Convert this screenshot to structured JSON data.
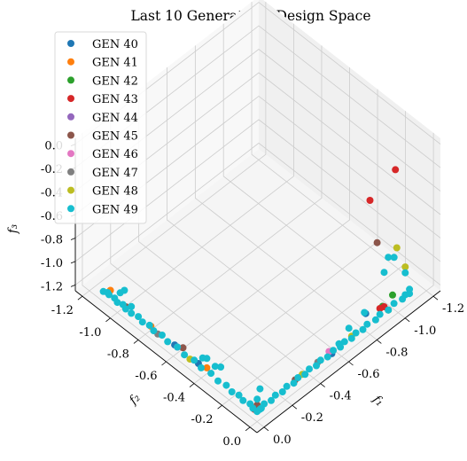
{
  "chart_data": {
    "type": "scatter",
    "projection": "3d",
    "title": "Last 10 Generations Design Space",
    "xlabel": "f₁",
    "ylabel": "f₂",
    "zlabel": "f₃",
    "xlim": [
      -1.25,
      0.05
    ],
    "ylim": [
      -1.25,
      0.05
    ],
    "zlim": [
      -1.25,
      0.05
    ],
    "x_ticks": [
      "-1.2",
      "-1.0",
      "-0.8",
      "-0.6",
      "-0.4",
      "-0.2",
      "0.0"
    ],
    "y_ticks": [
      "-1.2",
      "-1.0",
      "-0.8",
      "-0.6",
      "-0.4",
      "-0.2",
      "0.0"
    ],
    "z_ticks": [
      "-1.2",
      "-1.0",
      "-0.8",
      "-0.6",
      "-0.4",
      "-0.2",
      "0.0"
    ],
    "grid": true,
    "legend_position": "top-left",
    "series": [
      {
        "name": "GEN 40",
        "color": "#1f77b4",
        "points": [
          [
            -0.55,
            -0.02,
            -1.2
          ],
          [
            -0.03,
            -0.45,
            -1.2
          ],
          [
            -0.03,
            -0.62,
            -1.2
          ],
          [
            -0.8,
            -0.03,
            -1.1
          ]
        ]
      },
      {
        "name": "GEN 41",
        "color": "#ff7f0e",
        "points": [
          [
            -0.02,
            -0.78,
            -1.18
          ],
          [
            -0.04,
            -0.4,
            -1.2
          ],
          [
            -0.05,
            -1.1,
            -1.2
          ]
        ]
      },
      {
        "name": "GEN 42",
        "color": "#2ca02c",
        "points": [
          [
            -0.98,
            -0.02,
            -1.1
          ],
          [
            -0.95,
            -0.02,
            -1.2
          ],
          [
            -0.92,
            -0.03,
            -1.15
          ]
        ]
      },
      {
        "name": "GEN 43",
        "color": "#d62728",
        "points": [
          [
            -1.0,
            -0.02,
            -0.05
          ],
          [
            -0.95,
            -0.05,
            -1.2
          ],
          [
            -0.02,
            -0.04,
            -1.2
          ],
          [
            -0.85,
            -0.05,
            -0.2
          ],
          [
            -0.9,
            -0.03,
            -1.15
          ]
        ]
      },
      {
        "name": "GEN 44",
        "color": "#9467bd",
        "points": []
      },
      {
        "name": "GEN 45",
        "color": "#8c564b",
        "points": [
          [
            -0.05,
            -0.05,
            -1.2
          ],
          [
            -0.03,
            -0.97,
            -1.2
          ],
          [
            -0.95,
            -0.1,
            -0.7
          ],
          [
            -0.3,
            -0.03,
            -1.2
          ],
          [
            -0.02,
            -0.55,
            -1.15
          ]
        ]
      },
      {
        "name": "GEN 46",
        "color": "#e377c2",
        "points": [
          [
            -0.55,
            -0.04,
            -1.2
          ],
          [
            -0.03,
            -0.6,
            -1.2
          ]
        ]
      },
      {
        "name": "GEN 47",
        "color": "#7f7f7f",
        "points": [
          [
            -0.02,
            -0.73,
            -1.2
          ],
          [
            -0.45,
            -0.02,
            -1.18
          ]
        ]
      },
      {
        "name": "GEN 48",
        "color": "#bcbd22",
        "points": [
          [
            -1.05,
            -0.06,
            -0.8
          ],
          [
            -0.02,
            -0.5,
            -1.2
          ],
          [
            -0.35,
            -0.03,
            -1.2
          ],
          [
            -0.7,
            -0.03,
            -1.2
          ],
          [
            -1.1,
            -0.05,
            -1.0
          ]
        ]
      },
      {
        "name": "GEN 49",
        "color": "#17becf",
        "points": [
          [
            -0.02,
            -0.02,
            -1.2
          ],
          [
            -0.04,
            -0.02,
            -1.2
          ],
          [
            -0.02,
            -0.05,
            -1.2
          ],
          [
            -0.03,
            -0.08,
            -1.2
          ],
          [
            -0.02,
            -0.12,
            -1.2
          ],
          [
            -0.03,
            -0.16,
            -1.2
          ],
          [
            -0.02,
            -0.2,
            -1.2
          ],
          [
            -0.03,
            -0.25,
            -1.2
          ],
          [
            -0.02,
            -0.3,
            -1.2
          ],
          [
            -0.03,
            -0.36,
            -1.2
          ],
          [
            -0.02,
            -0.42,
            -1.2
          ],
          [
            -0.03,
            -0.48,
            -1.2
          ],
          [
            -0.02,
            -0.54,
            -1.2
          ],
          [
            -0.03,
            -0.6,
            -1.2
          ],
          [
            -0.02,
            -0.66,
            -1.2
          ],
          [
            -0.03,
            -0.71,
            -1.2
          ],
          [
            -0.02,
            -0.76,
            -1.2
          ],
          [
            -0.03,
            -0.8,
            -1.2
          ],
          [
            -0.02,
            -0.84,
            -1.2
          ],
          [
            -0.03,
            -0.88,
            -1.2
          ],
          [
            -0.02,
            -0.92,
            -1.2
          ],
          [
            -0.04,
            -0.94,
            -1.18
          ],
          [
            -0.02,
            -0.96,
            -1.2
          ],
          [
            -0.03,
            -0.99,
            -1.2
          ],
          [
            -0.02,
            -1.02,
            -1.2
          ],
          [
            -0.03,
            -1.05,
            -1.2
          ],
          [
            -0.02,
            -1.08,
            -1.19
          ],
          [
            -0.03,
            -1.1,
            -1.2
          ],
          [
            -0.02,
            -1.12,
            -1.2
          ],
          [
            -0.05,
            -0.02,
            -1.2
          ],
          [
            -0.08,
            -0.03,
            -1.2
          ],
          [
            -0.12,
            -0.02,
            -1.2
          ],
          [
            -0.16,
            -0.03,
            -1.2
          ],
          [
            -0.2,
            -0.02,
            -1.2
          ],
          [
            -0.24,
            -0.03,
            -1.2
          ],
          [
            -0.28,
            -0.02,
            -1.2
          ],
          [
            -0.32,
            -0.03,
            -1.2
          ],
          [
            -0.36,
            -0.02,
            -1.2
          ],
          [
            -0.4,
            -0.03,
            -1.2
          ],
          [
            -0.44,
            -0.02,
            -1.2
          ],
          [
            -0.48,
            -0.03,
            -1.2
          ],
          [
            -0.52,
            -0.02,
            -1.2
          ],
          [
            -0.57,
            -0.03,
            -1.2
          ],
          [
            -0.61,
            -0.02,
            -1.2
          ],
          [
            -0.65,
            -0.03,
            -1.2
          ],
          [
            -0.69,
            -0.02,
            -1.2
          ],
          [
            -0.73,
            -0.03,
            -1.2
          ],
          [
            -0.77,
            -0.02,
            -1.2
          ],
          [
            -0.81,
            -0.03,
            -1.2
          ],
          [
            -0.86,
            -0.02,
            -1.2
          ],
          [
            -0.9,
            -0.03,
            -1.2
          ],
          [
            -0.95,
            -0.02,
            -1.2
          ],
          [
            -1.0,
            -0.03,
            -1.2
          ],
          [
            -1.05,
            -0.02,
            -1.2
          ],
          [
            -1.08,
            -0.03,
            -1.2
          ],
          [
            -1.1,
            -0.02,
            -1.2
          ],
          [
            -1.12,
            -0.04,
            -1.2
          ],
          [
            -0.8,
            -0.04,
            -1.1
          ],
          [
            -0.7,
            -0.05,
            -1.15
          ],
          [
            -0.62,
            -0.04,
            -1.2
          ],
          [
            -0.95,
            -0.02,
            -0.75
          ],
          [
            -1.05,
            -0.08,
            -0.9
          ],
          [
            -1.1,
            -0.05,
            -1.05
          ],
          [
            -1.0,
            -0.1,
            -1.0
          ],
          [
            -0.02,
            -1.0,
            -1.1
          ],
          [
            -0.1,
            -1.05,
            -1.2
          ],
          [
            -0.04,
            -0.3,
            -1.1
          ],
          [
            -0.05,
            -0.35,
            -1.15
          ],
          [
            -0.04,
            -0.4,
            -1.12
          ],
          [
            -0.06,
            -0.45,
            -1.18
          ],
          [
            -0.05,
            -0.05,
            -1.15
          ],
          [
            -0.08,
            -0.06,
            -1.1
          ]
        ]
      }
    ]
  }
}
